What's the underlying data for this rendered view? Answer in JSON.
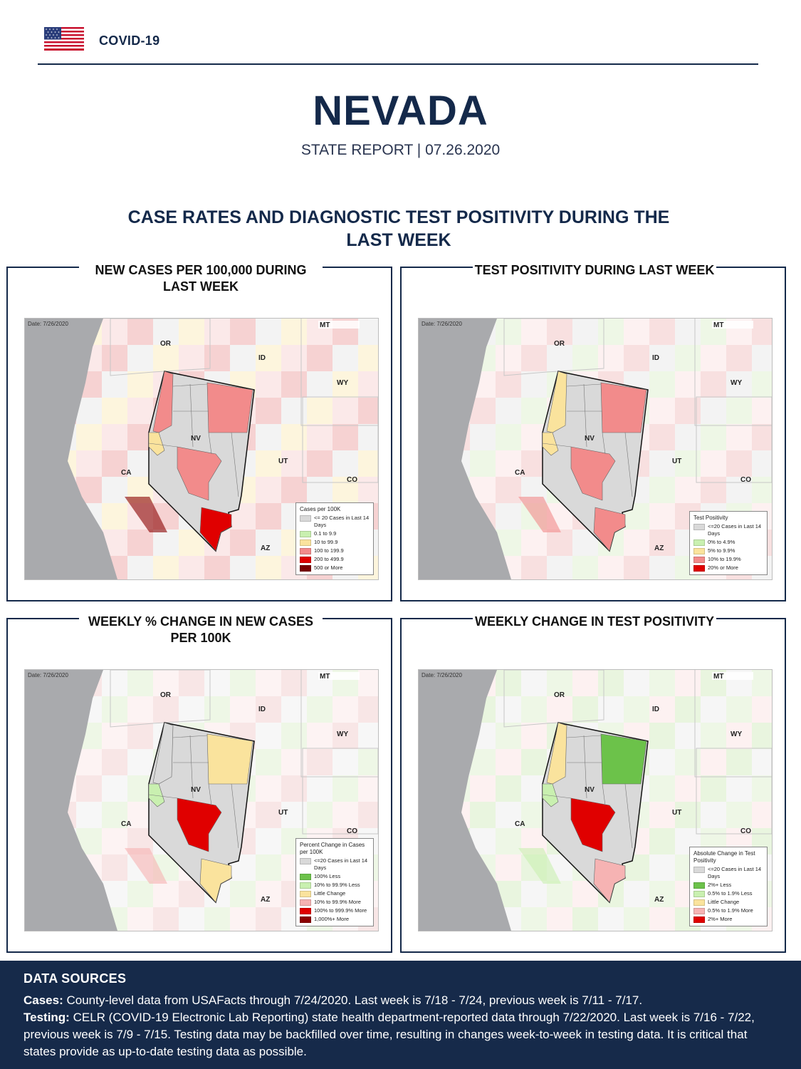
{
  "header": {
    "label": "COVID-19",
    "flag_icon": "us-flag-icon",
    "state": "NEVADA",
    "report_line": "STATE REPORT | 07.26.2020"
  },
  "section_title": "CASE RATES AND DIAGNOSTIC TEST POSITIVITY DURING THE LAST WEEK",
  "panels": [
    {
      "title": "NEW CASES PER 100,000 DURING LAST WEEK",
      "date": "Date: 7/26/2020",
      "legend_title": "Cases per 100K",
      "legend": [
        {
          "label": "<= 20 Cases in Last 14 Days",
          "color": "#d9d9d9"
        },
        {
          "label": "0.1 to 9.9",
          "color": "#c9f0b0"
        },
        {
          "label": "10 to 99.9",
          "color": "#fae39d"
        },
        {
          "label": "100 to 199.9",
          "color": "#f28b8b"
        },
        {
          "label": "200 to 499.9",
          "color": "#e00000"
        },
        {
          "label": "500 or More",
          "color": "#7a0000"
        }
      ]
    },
    {
      "title": "TEST POSITIVITY DURING LAST WEEK",
      "date": "Date: 7/26/2020",
      "legend_title": "Test Positivity",
      "legend": [
        {
          "label": "<=20 Cases in Last 14 Days",
          "color": "#d9d9d9"
        },
        {
          "label": "0% to 4.9%",
          "color": "#c9f0b0"
        },
        {
          "label": "5% to 9.9%",
          "color": "#fae39d"
        },
        {
          "label": "10% to 19.9%",
          "color": "#f28b8b"
        },
        {
          "label": "20% or More",
          "color": "#e00000"
        }
      ]
    },
    {
      "title": "WEEKLY % CHANGE IN NEW CASES PER 100K",
      "date": "Date: 7/26/2020",
      "legend_title": "Percent Change in Cases per 100K",
      "legend": [
        {
          "label": "<=20 Cases in Last 14 Days",
          "color": "#d9d9d9"
        },
        {
          "label": "100% Less",
          "color": "#6cc24a"
        },
        {
          "label": "10% to 99.9% Less",
          "color": "#c9f0b0"
        },
        {
          "label": "Little Change",
          "color": "#fae39d"
        },
        {
          "label": "10% to 99.9% More",
          "color": "#f6b3b3"
        },
        {
          "label": "100% to 999.9% More",
          "color": "#e00000"
        },
        {
          "label": "1,000%+ More",
          "color": "#8b0000"
        }
      ]
    },
    {
      "title": "WEEKLY CHANGE IN TEST POSITIVITY",
      "date": "Date: 7/26/2020",
      "legend_title": "Absolute Change in Test Positivity",
      "legend": [
        {
          "label": "<=20 Cases in Last 14 Days",
          "color": "#d9d9d9"
        },
        {
          "label": "2%+ Less",
          "color": "#6cc24a"
        },
        {
          "label": "0.5% to 1.9% Less",
          "color": "#c9f0b0"
        },
        {
          "label": "Little Change",
          "color": "#fae39d"
        },
        {
          "label": "0.5% to 1.9% More",
          "color": "#f6b3b3"
        },
        {
          "label": "2%+ More",
          "color": "#e00000"
        }
      ]
    }
  ],
  "map_labels": {
    "or": "OR",
    "id": "ID",
    "mt": "MT",
    "wy": "WY",
    "nv": "NV",
    "ut": "UT",
    "ca": "CA",
    "co": "CO",
    "az": "AZ"
  },
  "footer": {
    "heading": "DATA SOURCES",
    "cases_label": "Cases:",
    "cases_text": " County-level data from USAFacts through 7/24/2020. Last week is 7/18 - 7/24, previous week is 7/11 - 7/17.",
    "testing_label": "Testing:",
    "testing_text": " CELR (COVID-19 Electronic Lab Reporting) state health department-reported data through 7/22/2020. Last week is 7/16 - 7/22, previous week is 7/9 - 7/15. Testing data may be backfilled over time, resulting in changes week-to-week in testing data. It is critical that states provide as up-to-date testing data as possible."
  },
  "colors": {
    "navy": "#14294a",
    "footer_bg": "#162a4a"
  }
}
